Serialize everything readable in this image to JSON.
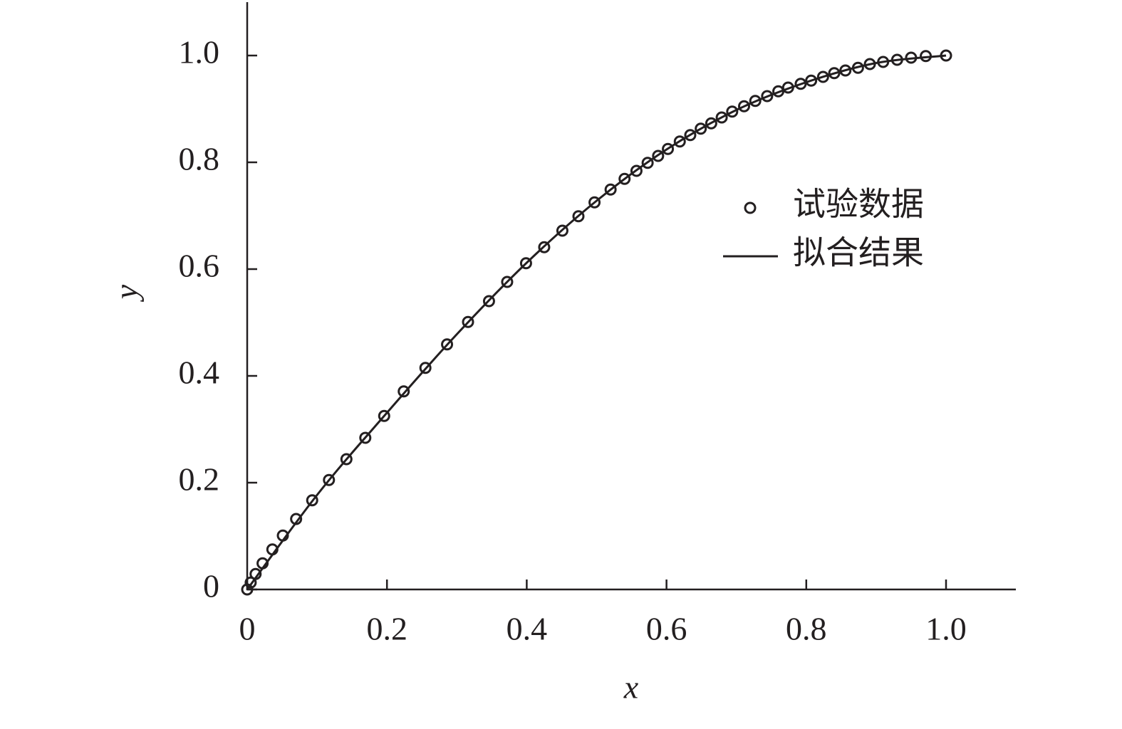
{
  "chart_data": {
    "type": "scatter",
    "x_label": "x",
    "y_label": "y",
    "xlim": [
      0,
      1.1
    ],
    "ylim": [
      0,
      1.1
    ],
    "xticks": [
      0,
      0.2,
      0.4,
      0.6,
      0.8,
      {
        "value": 1,
        "label": "1.0"
      }
    ],
    "yticks": [
      0,
      0.2,
      0.4,
      0.6,
      0.8,
      {
        "value": 1,
        "label": "1.0"
      }
    ],
    "series": [
      {
        "name": "试验数据",
        "type": "scatter",
        "color": "#231f20",
        "x": [
          0,
          0.005,
          0.012,
          0.022,
          0.036,
          0.051,
          0.07,
          0.093,
          0.117,
          0.142,
          0.169,
          0.196,
          0.224,
          0.255,
          0.286,
          0.316,
          0.346,
          0.372,
          0.399,
          0.425,
          0.451,
          0.474,
          0.497,
          0.52,
          0.54,
          0.557,
          0.573,
          0.588,
          0.602,
          0.619,
          0.634,
          0.649,
          0.664,
          0.679,
          0.694,
          0.711,
          0.727,
          0.744,
          0.76,
          0.774,
          0.792,
          0.807,
          0.824,
          0.84,
          0.856,
          0.874,
          0.891,
          0.91,
          0.93,
          0.95,
          0.971,
          1.0
        ],
        "values": [
          0,
          0.013,
          0.029,
          0.049,
          0.075,
          0.101,
          0.132,
          0.167,
          0.205,
          0.244,
          0.284,
          0.325,
          0.371,
          0.415,
          0.459,
          0.501,
          0.54,
          0.576,
          0.611,
          0.641,
          0.672,
          0.699,
          0.725,
          0.749,
          0.769,
          0.784,
          0.799,
          0.812,
          0.825,
          0.839,
          0.851,
          0.863,
          0.873,
          0.884,
          0.895,
          0.905,
          0.915,
          0.924,
          0.933,
          0.94,
          0.947,
          0.953,
          0.96,
          0.967,
          0.972,
          0.977,
          0.984,
          0.988,
          0.992,
          0.996,
          0.999,
          1.0
        ]
      },
      {
        "name": "拟合结果",
        "type": "line",
        "color": "#231f20",
        "x": [
          0,
          0.1,
          0.2,
          0.3,
          0.4,
          0.5,
          0.6,
          0.7,
          0.8,
          0.9,
          1.0
        ],
        "values": [
          0,
          0.177,
          0.331,
          0.478,
          0.612,
          0.728,
          0.824,
          0.898,
          0.95,
          0.986,
          1.0
        ]
      }
    ]
  }
}
